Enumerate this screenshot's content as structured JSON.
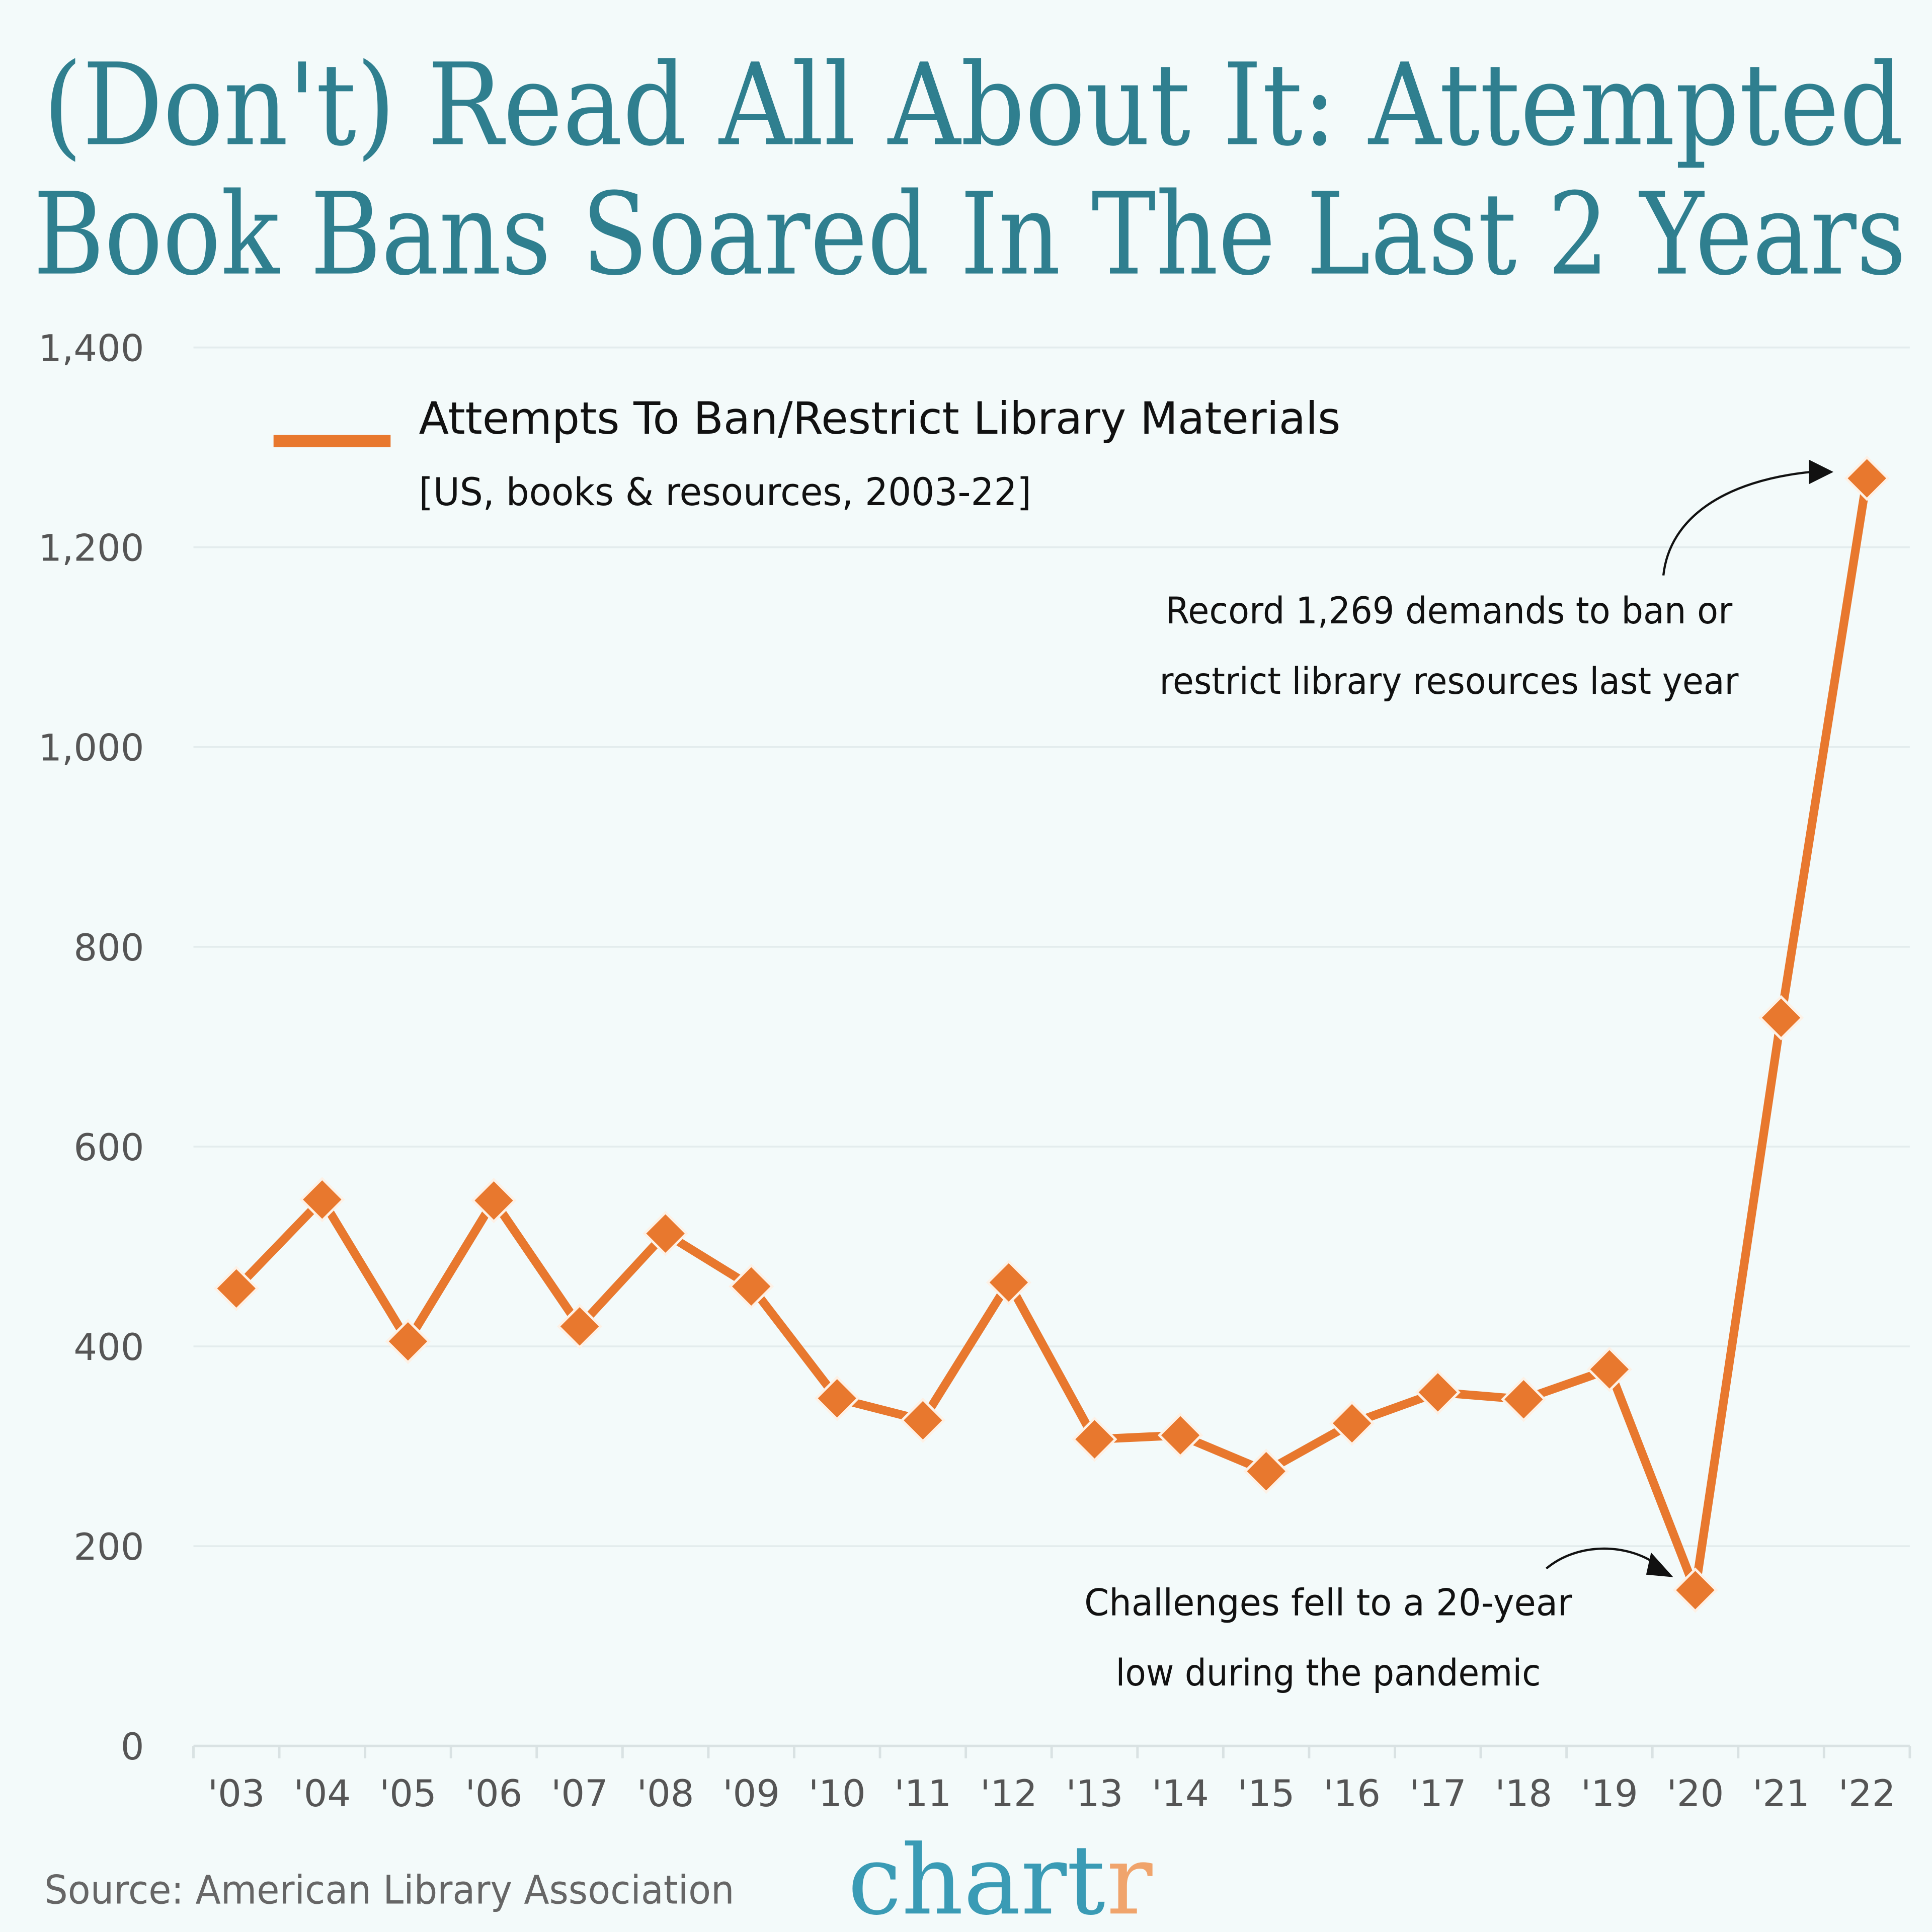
{
  "title": {
    "line1": "(Don't) Read All About It: Attempted",
    "line2": "Book Bans Soared In The Last 2 Years"
  },
  "chart_data": {
    "type": "line",
    "title": "(Don't) Read All About It: Attempted Book Bans Soared In The Last 2 Years",
    "categories": [
      "'03",
      "'04",
      "'05",
      "'06",
      "'07",
      "'08",
      "'09",
      "'10",
      "'11",
      "'12",
      "'13",
      "'14",
      "'15",
      "'16",
      "'17",
      "'18",
      "'19",
      "'20",
      "'21",
      "'22"
    ],
    "series": [
      {
        "name": "Attempts To Ban/Restrict Library Materials",
        "subtitle": "[US, books & resources, 2003-22]",
        "color": "#e8782e",
        "marker": "diamond",
        "values": [
          458,
          547,
          405,
          546,
          420,
          513,
          460,
          348,
          326,
          464,
          307,
          311,
          275,
          323,
          354,
          347,
          377,
          156,
          729,
          1269
        ]
      }
    ],
    "yticks": [
      "0",
      "200",
      "400",
      "600",
      "800",
      "1,000",
      "1,200",
      "1,400"
    ],
    "ytick_values": [
      0,
      200,
      400,
      600,
      800,
      1000,
      1200,
      1400
    ],
    "ylim": [
      0,
      1400
    ],
    "grid": true,
    "legend_position": "top-left",
    "annotations": [
      {
        "target": "'22",
        "lines": [
          "Record 1,269 demands to ban or",
          "restrict library resources last year"
        ]
      },
      {
        "target": "'20",
        "lines": [
          "Challenges fell to a 20-year",
          "low during the pandemic"
        ]
      }
    ]
  },
  "footer": {
    "source": "Source: American Library Association",
    "logo_main": "chart",
    "logo_end": "r"
  },
  "colors": {
    "background": "#f3fafa",
    "title": "#2f7f8f",
    "line": "#e8782e",
    "logo": "#3a9bb5",
    "logo_accent": "#f0a46c"
  }
}
